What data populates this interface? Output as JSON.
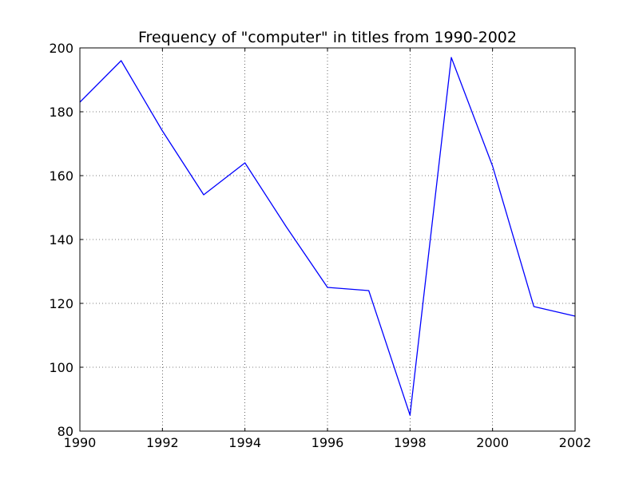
{
  "chart_data": {
    "type": "line",
    "title": "Frequency of \"computer\" in titles from 1990-2002",
    "xlabel": "",
    "ylabel": "",
    "xlim": [
      1990,
      2002
    ],
    "ylim": [
      80,
      200
    ],
    "xticks": [
      1990,
      1992,
      1994,
      1996,
      1998,
      2000,
      2002
    ],
    "yticks": [
      80,
      100,
      120,
      140,
      160,
      180,
      200
    ],
    "grid": true,
    "grid_style": "dotted",
    "series": [
      {
        "color": "#0000ff",
        "x": [
          1990,
          1991,
          1992,
          1993,
          1994,
          1995,
          1996,
          1997,
          1998,
          1999,
          2000,
          2001,
          2002
        ],
        "y": [
          183,
          196,
          174,
          154,
          164,
          144,
          125,
          124,
          85,
          197,
          163,
          119,
          116
        ]
      }
    ]
  }
}
